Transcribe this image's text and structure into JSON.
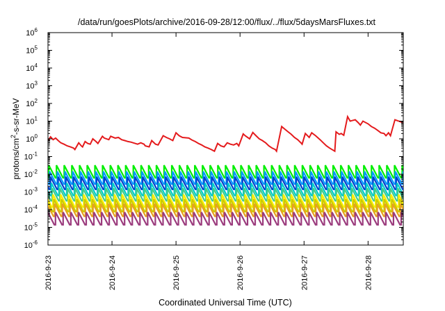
{
  "chart_data": {
    "type": "line",
    "title": "/data/run/goesPlots/archive/2016-09-28/12:00/flux/../flux/5daysMarsFluxes.txt",
    "xlabel": "Coordinated Universal Time (UTC)",
    "ylabel_parts": {
      "pre": "protons/cm",
      "sup": "2",
      "post": "-s-sr-MeV"
    },
    "yscale": "log",
    "ylim": [
      1e-06,
      1000000.0
    ],
    "xlim": [
      0,
      5.55
    ],
    "x_unit": "days after 2016-9-23 00:00 UTC",
    "x_ticks": [
      {
        "value": 0,
        "label": "2016-9-23"
      },
      {
        "value": 1,
        "label": "2016-9-24"
      },
      {
        "value": 2,
        "label": "2016-9-25"
      },
      {
        "value": 3,
        "label": "2016-9-26"
      },
      {
        "value": 4,
        "label": "2016-9-27"
      },
      {
        "value": 5,
        "label": "2016-9-28"
      }
    ],
    "y_ticks": [
      {
        "exp": -6,
        "base": "10",
        "sup": "-6"
      },
      {
        "exp": -5,
        "base": "10",
        "sup": "-5"
      },
      {
        "exp": -4,
        "base": "10",
        "sup": "-4"
      },
      {
        "exp": -3,
        "base": "10",
        "sup": "-3"
      },
      {
        "exp": -2,
        "base": "10",
        "sup": "-2"
      },
      {
        "exp": -1,
        "base": "10",
        "sup": "-1"
      },
      {
        "exp": 0,
        "base": "10",
        "sup": "0"
      },
      {
        "exp": 1,
        "base": "10",
        "sup": "1"
      },
      {
        "exp": 2,
        "base": "10",
        "sup": "2"
      },
      {
        "exp": 3,
        "base": "10",
        "sup": "3"
      },
      {
        "exp": 4,
        "base": "10",
        "sup": "4"
      },
      {
        "exp": 5,
        "base": "10",
        "sup": "5"
      },
      {
        "exp": 6,
        "base": "10",
        "sup": "6"
      }
    ],
    "grid": false,
    "legend": "none",
    "series": [
      {
        "color": "#e41a1c",
        "x": [
          0,
          0.04,
          0.08,
          0.12,
          0.16,
          0.2,
          0.25,
          0.3,
          0.35,
          0.4,
          0.42,
          0.48,
          0.52,
          0.54,
          0.58,
          0.62,
          0.66,
          0.7,
          0.75,
          0.78,
          0.85,
          0.88,
          0.95,
          0.98,
          1.05,
          1.1,
          1.15,
          1.2,
          1.25,
          1.3,
          1.4,
          1.45,
          1.5,
          1.52,
          1.58,
          1.62,
          1.68,
          1.72,
          1.8,
          1.85,
          1.9,
          1.95,
          2.0,
          2.05,
          2.1,
          2.2,
          2.25,
          2.3,
          2.35,
          2.4,
          2.45,
          2.5,
          2.55,
          2.6,
          2.65,
          2.7,
          2.75,
          2.8,
          2.85,
          2.9,
          2.95,
          2.98,
          3.05,
          3.08,
          3.15,
          3.2,
          3.25,
          3.3,
          3.35,
          3.4,
          3.45,
          3.5,
          3.55,
          3.57,
          3.65,
          3.7,
          3.75,
          3.8,
          3.85,
          3.9,
          3.95,
          3.97,
          4.02,
          4.08,
          4.12,
          4.18,
          4.25,
          4.3,
          4.35,
          4.4,
          4.48,
          4.5,
          4.55,
          4.58,
          4.62,
          4.68,
          4.72,
          4.8,
          4.85,
          4.88,
          4.92,
          5.0,
          5.05,
          5.1,
          5.15,
          5.2,
          5.25,
          5.28,
          5.32,
          5.35,
          5.42,
          5.48,
          5.55
        ],
        "y": [
          0.8,
          1.3,
          0.9,
          1.1,
          0.8,
          0.6,
          0.5,
          0.4,
          0.35,
          0.3,
          0.25,
          0.6,
          0.4,
          0.35,
          0.7,
          0.55,
          0.5,
          1.0,
          0.7,
          0.55,
          1.4,
          1.1,
          0.9,
          1.4,
          1.1,
          1.2,
          0.9,
          0.8,
          0.7,
          0.65,
          0.5,
          0.6,
          0.5,
          0.4,
          0.35,
          0.8,
          0.5,
          0.45,
          1.5,
          1.2,
          1.0,
          0.8,
          2.2,
          1.5,
          1.2,
          1.1,
          0.85,
          0.7,
          0.55,
          0.45,
          0.35,
          0.3,
          0.25,
          0.2,
          0.55,
          0.4,
          0.35,
          0.6,
          0.5,
          0.45,
          0.55,
          0.4,
          1.9,
          1.5,
          1.0,
          2.3,
          1.5,
          1.0,
          0.8,
          0.6,
          0.4,
          0.3,
          0.25,
          0.2,
          5.0,
          3.5,
          2.5,
          1.8,
          1.2,
          0.9,
          0.6,
          0.5,
          2.0,
          1.2,
          2.2,
          1.5,
          0.9,
          0.6,
          0.4,
          0.3,
          0.2,
          2.5,
          1.8,
          2.0,
          1.6,
          18,
          10,
          12,
          8,
          6,
          10,
          7,
          5,
          4,
          3,
          2.2,
          2.0,
          1.5,
          2.2,
          1.5,
          12,
          10,
          8
        ]
      },
      {
        "color": "#00ee00",
        "level": 0.018,
        "period": 0.12
      },
      {
        "color": "#0099ff",
        "level": 0.008,
        "period": 0.12
      },
      {
        "color": "#0040cc",
        "level": 0.004,
        "period": 0.12
      },
      {
        "color": "#00cccc",
        "level": 0.0018,
        "period": 0.12
      },
      {
        "color": "#44cc88",
        "level": 0.0009,
        "period": 0.12
      },
      {
        "color": "#ffee00",
        "level": 0.0004,
        "period": 0.12
      },
      {
        "color": "#cccc00",
        "level": 0.00022,
        "period": 0.12
      },
      {
        "color": "#e8a020",
        "level": 0.00012,
        "period": 0.12
      },
      {
        "color": "#9b3b7d",
        "level": 4e-05,
        "period": 0.12
      }
    ]
  }
}
